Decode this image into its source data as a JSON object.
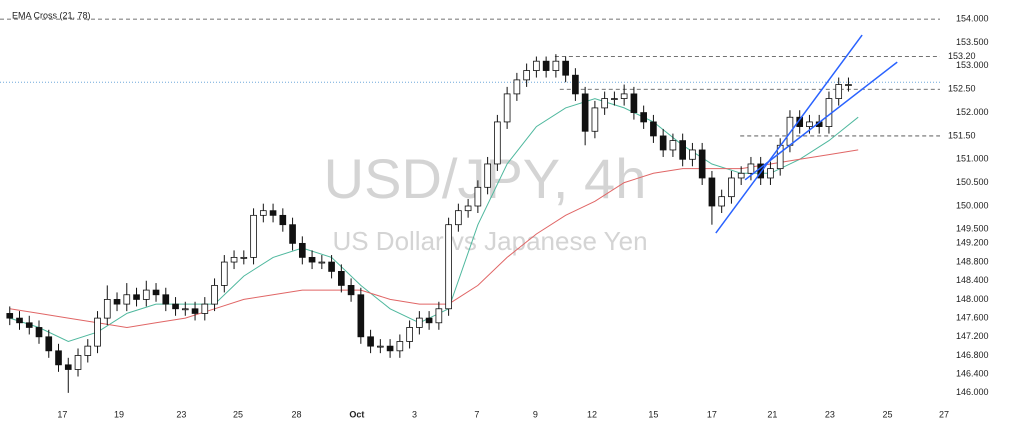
{
  "chart_data": {
    "type": "candlestick",
    "indicator_label": "EMA Cross (21, 78)",
    "title": "USD/JPY, 4h",
    "subtitle": "US Dollar vs Japanese Yen",
    "up_color": "#ffffff",
    "down_color": "#111111",
    "xlim": [
      -1,
      104
    ],
    "ylim": [
      145.74,
      154.41
    ],
    "open": [
      147.7,
      147.6,
      147.5,
      147.4,
      147.2,
      146.9,
      146.6,
      146.5,
      146.8,
      147.0,
      147.6,
      148.0,
      147.9,
      148.1,
      148.0,
      148.2,
      148.1,
      147.9,
      147.8,
      147.8,
      147.7,
      147.9,
      148.3,
      148.8,
      148.9,
      148.9,
      149.8,
      149.9,
      149.8,
      149.6,
      149.2,
      148.9,
      148.8,
      148.8,
      148.6,
      148.3,
      148.1,
      147.2,
      147.0,
      147.0,
      146.9,
      147.1,
      147.4,
      147.6,
      147.5,
      147.8,
      149.6,
      149.9,
      150.0,
      150.4,
      150.9,
      151.8,
      152.4,
      152.7,
      152.9,
      153.1,
      152.9,
      153.1,
      152.8,
      152.4,
      151.6,
      152.1,
      152.3,
      152.3,
      152.4,
      152.0,
      151.8,
      151.5,
      151.2,
      151.4,
      151.0,
      151.2,
      150.6,
      150.0,
      150.2,
      150.6,
      150.7,
      150.9,
      150.6,
      150.8,
      151.3,
      151.9,
      151.7,
      151.8,
      151.7,
      152.3,
      152.6
    ],
    "high": [
      147.85,
      147.75,
      147.65,
      147.55,
      147.35,
      147.05,
      146.75,
      146.95,
      147.15,
      147.75,
      148.3,
      148.15,
      148.35,
      148.25,
      148.4,
      148.35,
      148.25,
      148.05,
      147.95,
      147.95,
      148.05,
      148.45,
      148.95,
      149.05,
      149.05,
      149.95,
      150.05,
      150.05,
      149.95,
      149.75,
      149.35,
      149.05,
      148.95,
      148.95,
      148.75,
      148.45,
      148.25,
      147.35,
      147.15,
      147.15,
      147.25,
      147.55,
      147.75,
      147.75,
      147.95,
      149.75,
      150.05,
      150.15,
      150.55,
      151.05,
      151.95,
      152.55,
      152.85,
      153.05,
      153.2,
      153.2,
      153.25,
      153.2,
      152.95,
      152.55,
      152.25,
      152.45,
      152.45,
      152.6,
      152.55,
      152.15,
      151.95,
      151.65,
      151.55,
      151.55,
      151.35,
      151.35,
      150.75,
      150.35,
      150.75,
      150.85,
      151.05,
      151.05,
      150.95,
      151.45,
      152.05,
      152.05,
      151.95,
      151.95,
      152.45,
      152.75,
      152.75
    ],
    "low": [
      147.45,
      147.35,
      147.25,
      147.05,
      146.75,
      146.45,
      146.0,
      146.35,
      146.65,
      146.85,
      147.45,
      147.75,
      147.75,
      147.85,
      147.85,
      147.95,
      147.75,
      147.65,
      147.65,
      147.55,
      147.55,
      147.75,
      148.15,
      148.65,
      148.75,
      148.75,
      149.65,
      149.65,
      149.45,
      149.05,
      148.75,
      148.65,
      148.65,
      148.45,
      148.15,
      147.95,
      147.05,
      146.85,
      146.85,
      146.75,
      146.75,
      146.95,
      147.25,
      147.35,
      147.35,
      147.65,
      149.45,
      149.75,
      149.85,
      150.25,
      150.75,
      151.65,
      152.25,
      152.55,
      152.75,
      152.75,
      152.75,
      152.65,
      152.25,
      151.3,
      151.45,
      151.95,
      152.15,
      152.15,
      151.85,
      151.65,
      151.35,
      151.05,
      151.05,
      150.85,
      150.85,
      150.45,
      149.6,
      149.85,
      150.05,
      150.45,
      150.55,
      150.45,
      150.45,
      150.65,
      151.15,
      151.55,
      151.55,
      151.55,
      151.55,
      152.15,
      152.45
    ],
    "close": [
      147.6,
      147.5,
      147.4,
      147.2,
      146.9,
      146.6,
      146.5,
      146.8,
      147.0,
      147.6,
      148.0,
      147.9,
      148.1,
      148.0,
      148.2,
      148.1,
      147.9,
      147.8,
      147.8,
      147.7,
      147.9,
      148.3,
      148.8,
      148.9,
      148.9,
      149.8,
      149.9,
      149.8,
      149.6,
      149.2,
      148.9,
      148.8,
      148.8,
      148.6,
      148.3,
      148.1,
      147.2,
      147.0,
      147.0,
      146.9,
      147.1,
      147.4,
      147.6,
      147.5,
      147.8,
      149.6,
      149.9,
      150.0,
      150.4,
      150.9,
      151.8,
      152.4,
      152.7,
      152.9,
      153.1,
      152.9,
      153.1,
      152.8,
      152.4,
      151.6,
      152.1,
      152.3,
      152.3,
      152.4,
      152.0,
      151.8,
      151.5,
      151.2,
      151.4,
      151.0,
      151.2,
      150.6,
      150.0,
      150.2,
      150.6,
      150.7,
      150.9,
      150.6,
      150.8,
      151.3,
      151.9,
      151.7,
      151.8,
      151.7,
      152.3,
      152.6,
      152.6
    ],
    "overlays": [
      {
        "color": "#4fb89e",
        "x": [
          0,
          3,
          6,
          9,
          12,
          15,
          18,
          21,
          24,
          27,
          30,
          33,
          36,
          39,
          42,
          45,
          48,
          51,
          54,
          57,
          60,
          63,
          66,
          69,
          72,
          75,
          78,
          81,
          84,
          87
        ],
        "values": [
          147.6,
          147.4,
          147.1,
          147.3,
          147.7,
          147.9,
          147.9,
          147.9,
          148.5,
          148.9,
          149.1,
          148.9,
          148.3,
          147.8,
          147.5,
          147.8,
          149.6,
          150.9,
          151.7,
          152.1,
          152.3,
          152.1,
          151.8,
          151.3,
          150.9,
          150.7,
          150.7,
          151.0,
          151.4,
          151.9
        ]
      },
      {
        "color": "#e06666",
        "x": [
          0,
          3,
          6,
          9,
          12,
          15,
          18,
          21,
          24,
          27,
          30,
          33,
          36,
          39,
          42,
          45,
          48,
          51,
          54,
          57,
          60,
          63,
          66,
          69,
          72,
          75,
          78,
          81,
          84,
          87
        ],
        "values": [
          147.8,
          147.7,
          147.6,
          147.5,
          147.4,
          147.5,
          147.6,
          147.8,
          148.0,
          148.1,
          148.2,
          148.2,
          148.2,
          148.0,
          147.9,
          147.9,
          148.3,
          148.9,
          149.4,
          149.8,
          150.1,
          150.5,
          150.7,
          150.8,
          150.8,
          150.8,
          150.9,
          151.0,
          151.1,
          151.2
        ]
      }
    ],
    "trendline_color": "#2962ff",
    "trendlines": [
      {
        "x": [
          72.4,
          87.4
        ],
        "y": [
          149.42,
          153.66
        ]
      },
      {
        "x": [
          75.4,
          91.0
        ],
        "y": [
          150.56,
          153.08
        ]
      }
    ],
    "levels": [
      {
        "value": 154,
        "from": -1
      },
      {
        "value": 153.2,
        "from": 55.9,
        "label": "153.20"
      },
      {
        "value": 152.5,
        "from": 56.4,
        "label": "152.50"
      },
      {
        "value": 151.5,
        "from": 74.9,
        "label": "151.50"
      }
    ],
    "last_price": 152.65,
    "last_price_color": "#6fa8dc",
    "yticks": [
      {
        "value": 154,
        "label": "154.000"
      },
      {
        "value": 153.5,
        "label": "153.500"
      },
      {
        "value": 153,
        "label": "153.000"
      },
      {
        "value": 152,
        "label": "152.000"
      },
      {
        "value": 151,
        "label": "151.000"
      },
      {
        "value": 150.5,
        "label": "150.500"
      },
      {
        "value": 150,
        "label": "150.000"
      },
      {
        "value": 149.5,
        "label": "149.500"
      },
      {
        "value": 149.2,
        "label": "149.200"
      },
      {
        "value": 148.8,
        "label": "148.800"
      },
      {
        "value": 148.4,
        "label": "148.400"
      },
      {
        "value": 148,
        "label": "148.000"
      },
      {
        "value": 147.6,
        "label": "147.600"
      },
      {
        "value": 147.2,
        "label": "147.200"
      },
      {
        "value": 146.8,
        "label": "146.800"
      },
      {
        "value": 146.4,
        "label": "146.400"
      },
      {
        "value": 146,
        "label": "146.000"
      }
    ],
    "xticks": [
      {
        "value": 5.4,
        "label": "17"
      },
      {
        "value": 11.2,
        "label": "19"
      },
      {
        "value": 17.6,
        "label": "23"
      },
      {
        "value": 23.4,
        "label": "25"
      },
      {
        "value": 29.4,
        "label": "28"
      },
      {
        "value": 35.6,
        "label": "Oct"
      },
      {
        "value": 41.5,
        "label": "3"
      },
      {
        "value": 47.9,
        "label": "7"
      },
      {
        "value": 53.9,
        "label": "9"
      },
      {
        "value": 59.7,
        "label": "12"
      },
      {
        "value": 66.0,
        "label": "15"
      },
      {
        "value": 72.0,
        "label": "17"
      },
      {
        "value": 78.2,
        "label": "21"
      },
      {
        "value": 84.1,
        "label": "23"
      },
      {
        "value": 90.0,
        "label": "25"
      },
      {
        "value": 95.8,
        "label": "27"
      }
    ]
  }
}
